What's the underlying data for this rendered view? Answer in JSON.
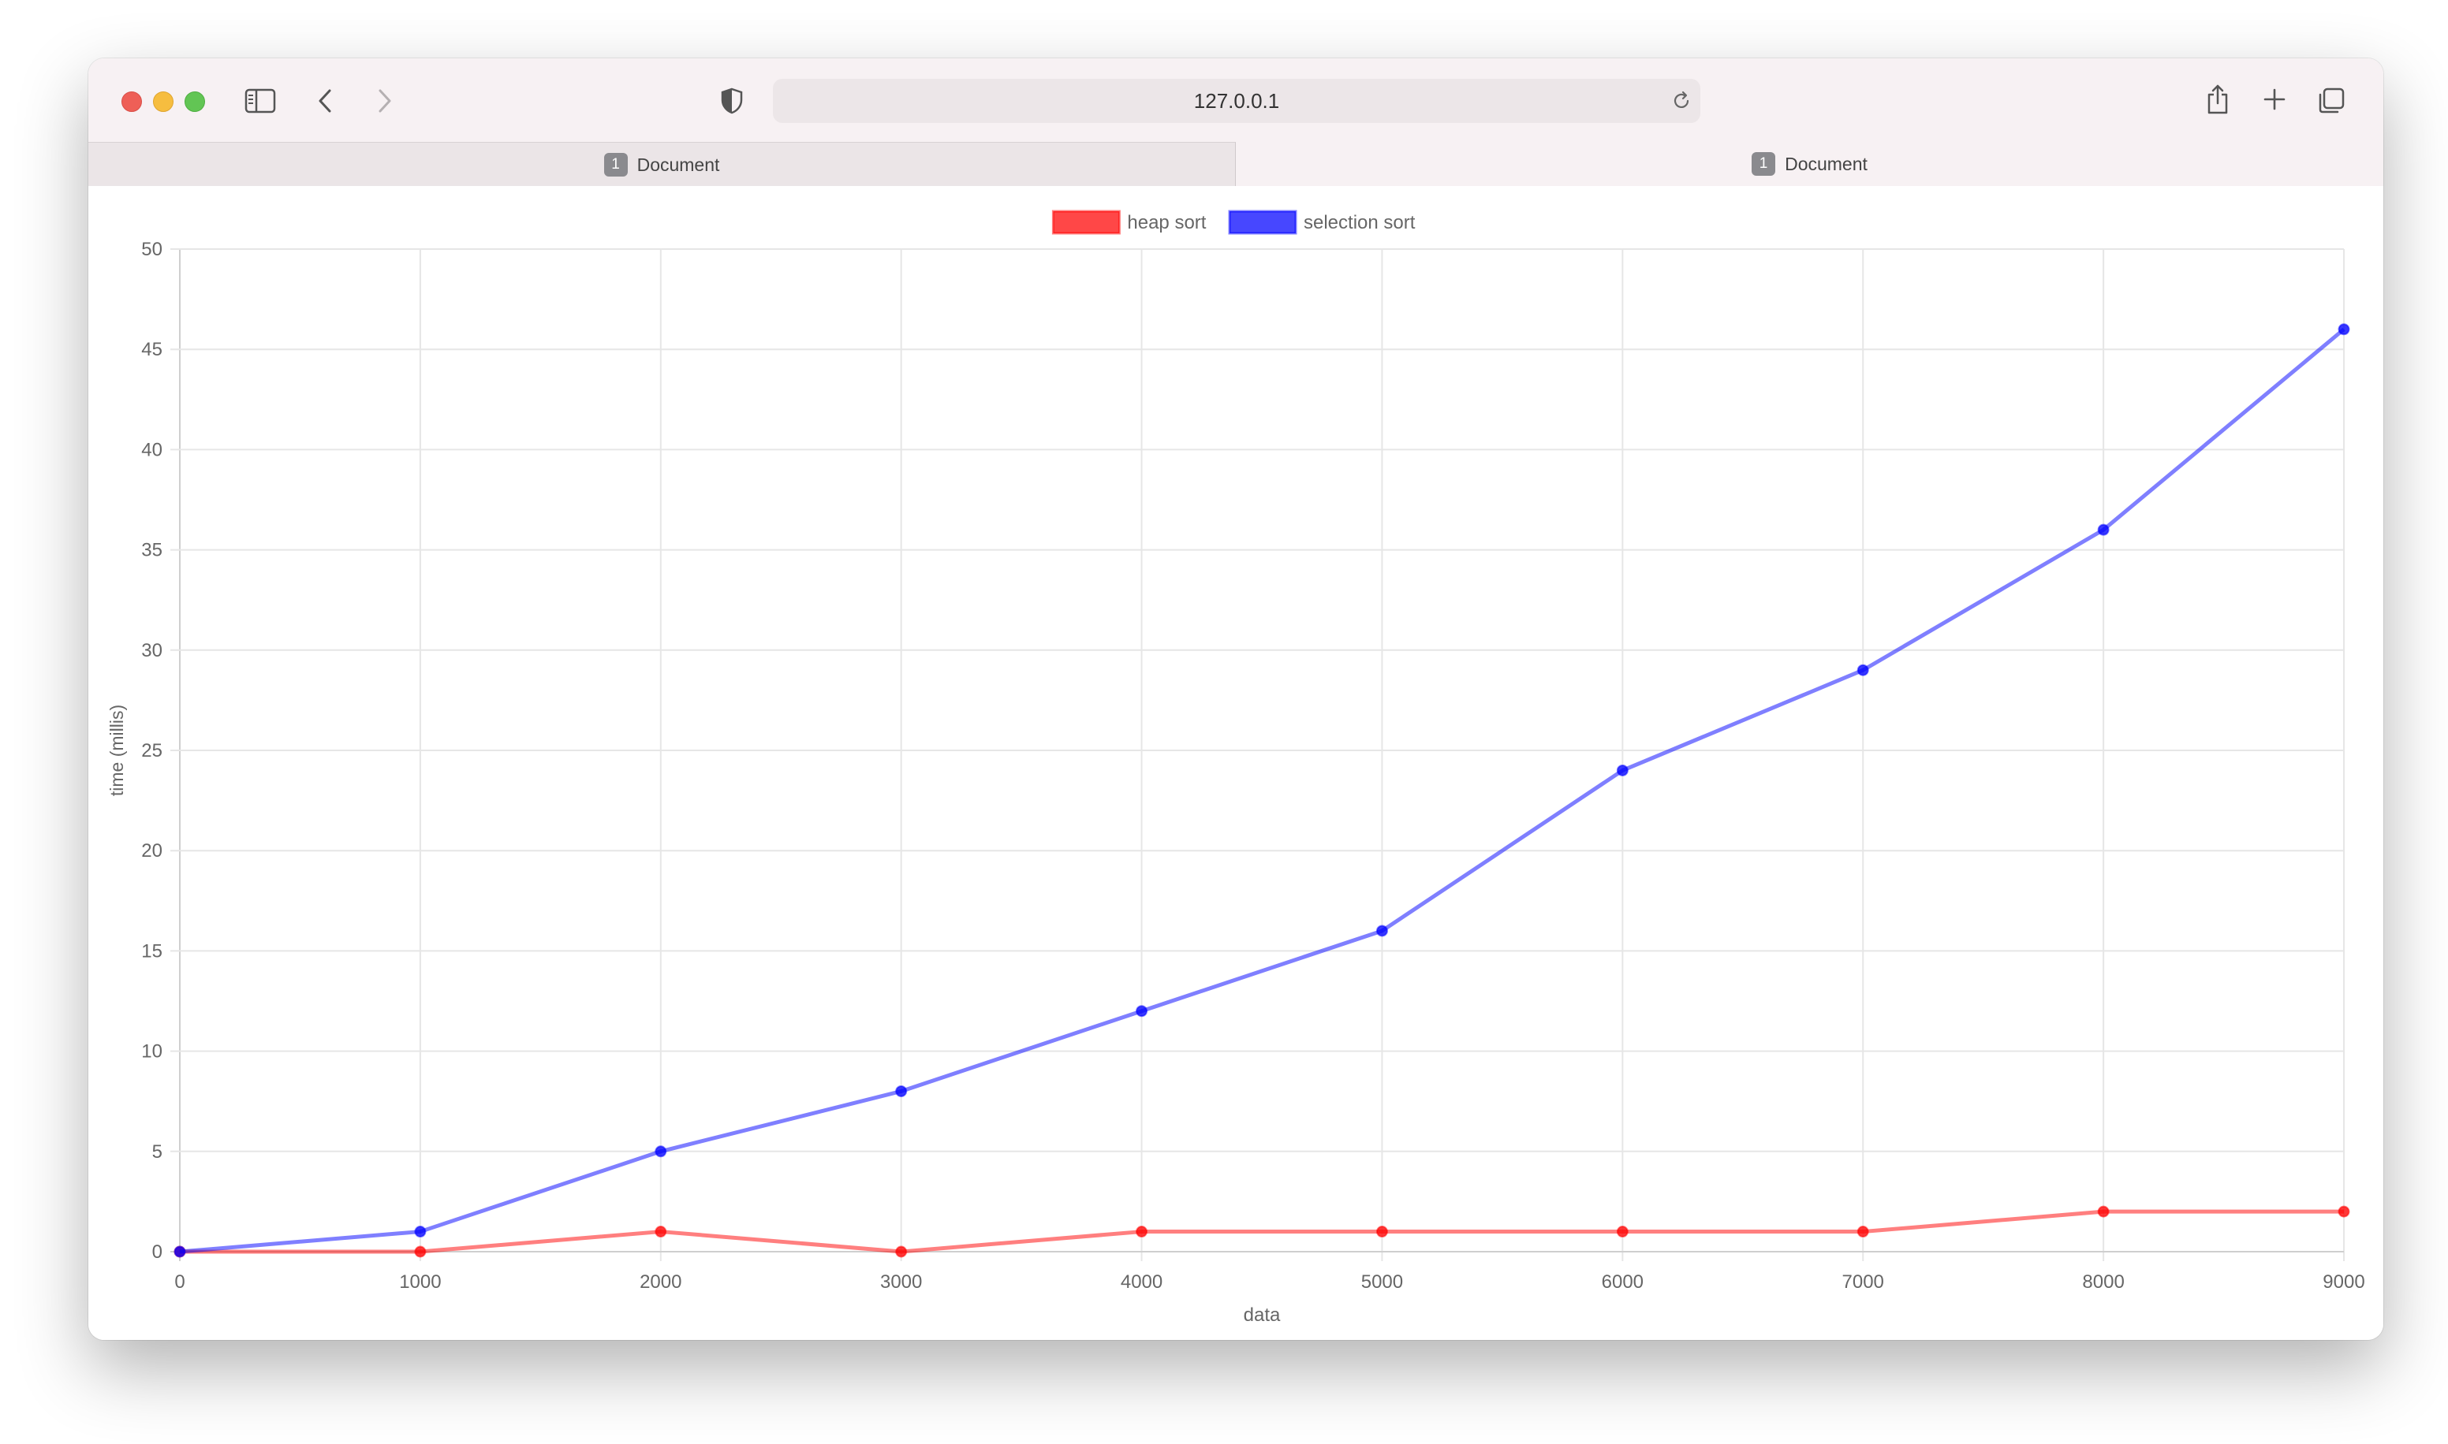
{
  "browser": {
    "url": "127.0.0.1",
    "tabs": [
      {
        "badge": "1",
        "label": "Document",
        "active": false
      },
      {
        "badge": "1",
        "label": "Document",
        "active": true
      }
    ],
    "icons": [
      "sidebar-icon",
      "back-icon",
      "forward-icon",
      "privacy-shield-icon",
      "reload-icon",
      "share-icon",
      "new-tab-icon",
      "tab-overview-icon"
    ]
  },
  "chart_data": {
    "type": "line",
    "title": "",
    "xlabel": "data",
    "ylabel": "time (millis)",
    "x": [
      0,
      1000,
      2000,
      3000,
      4000,
      5000,
      6000,
      7000,
      8000,
      9000
    ],
    "x_ticks": [
      "0",
      "1000",
      "2000",
      "3000",
      "4000",
      "5000",
      "6000",
      "7000",
      "8000",
      "9000"
    ],
    "y_ticks": [
      "0",
      "5",
      "10",
      "15",
      "20",
      "25",
      "30",
      "35",
      "40",
      "45",
      "50"
    ],
    "xlim": [
      0,
      9000
    ],
    "ylim": [
      0,
      50
    ],
    "grid": true,
    "legend_position": "top-center",
    "series": [
      {
        "name": "heap sort",
        "color": "#ff0000",
        "values": [
          0,
          0,
          1,
          0,
          1,
          1,
          1,
          1,
          2,
          2
        ]
      },
      {
        "name": "selection sort",
        "color": "#0000ff",
        "values": [
          0,
          1,
          5,
          8,
          12,
          16,
          24,
          29,
          36,
          46
        ]
      }
    ]
  }
}
